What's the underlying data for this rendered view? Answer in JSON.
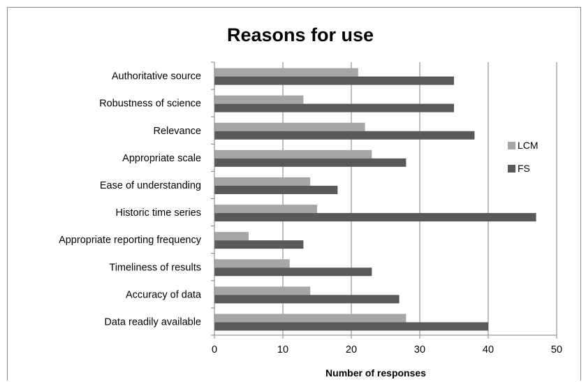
{
  "chart_data": {
    "type": "bar",
    "orientation": "horizontal",
    "title": "Reasons for use",
    "xlabel": "Number of responses",
    "ylabel": "",
    "xlim": [
      0,
      50
    ],
    "x_ticks": [
      0,
      10,
      20,
      30,
      40,
      50
    ],
    "grid": "vertical major gridlines",
    "legend_position": "right",
    "categories": [
      "Authoritative source",
      "Robustness of science",
      "Relevance",
      "Appropriate scale",
      "Ease of understanding",
      "Historic time  series",
      "Appropriate reporting frequency",
      "Timeliness of results",
      "Accuracy of data",
      "Data readily available"
    ],
    "series": [
      {
        "name": "LCM",
        "color": "#a6a6a6",
        "values": [
          21,
          13,
          22,
          23,
          14,
          15,
          5,
          11,
          14,
          28
        ]
      },
      {
        "name": "FS",
        "color": "#595959",
        "values": [
          35,
          35,
          38,
          28,
          18,
          47,
          13,
          23,
          27,
          40
        ]
      }
    ]
  }
}
